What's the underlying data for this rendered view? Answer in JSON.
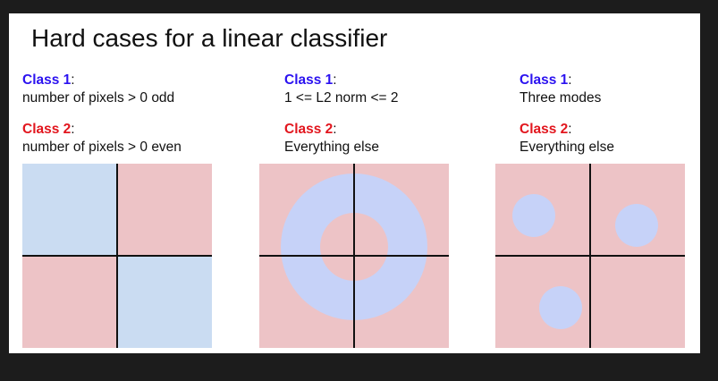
{
  "slide": {
    "title": "Hard cases for a linear classifier",
    "panels": [
      {
        "class1_label": "Class 1",
        "class1_desc": "number of pixels > 0 odd",
        "class2_label": "Class 2",
        "class2_desc": "number of pixels > 0 even"
      },
      {
        "class1_label": "Class 1",
        "class1_desc": "1 <= L2 norm <= 2",
        "class2_label": "Class 2",
        "class2_desc": "Everything else"
      },
      {
        "class1_label": "Class 1",
        "class1_desc": "Three modes",
        "class2_label": "Class 2",
        "class2_desc": "Everything else"
      }
    ],
    "colon": ":"
  },
  "colors": {
    "class1_label": "#2b12f0",
    "class2_label": "#e2161e",
    "region_blue_quadrant": "#cadcf2",
    "region_blue_blob": "#c6d2f8",
    "region_red": "#edc3c6",
    "axis": "#111111"
  }
}
